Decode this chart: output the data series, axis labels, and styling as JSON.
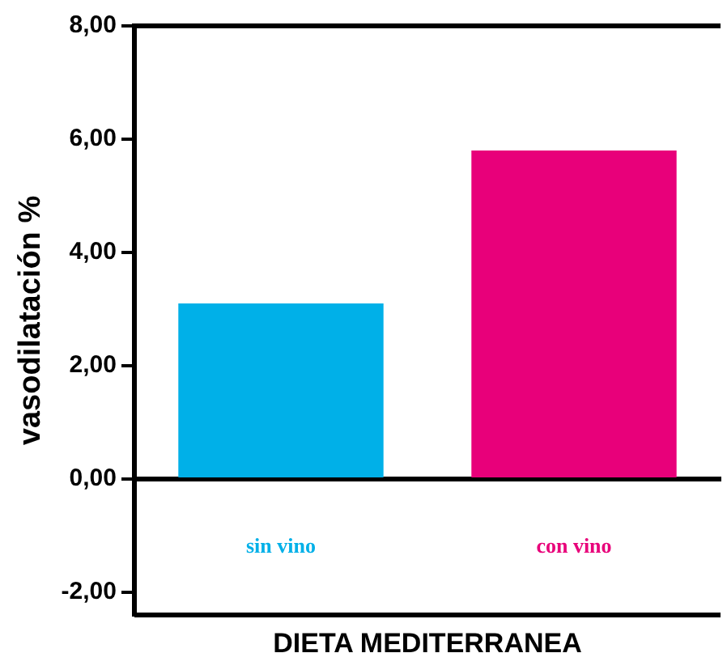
{
  "chart_data": {
    "type": "bar",
    "ylabel": "vasodilatación %",
    "xlabel": "DIETA MEDITERRANEA",
    "categories": [
      "sin vino",
      "con vino"
    ],
    "values": [
      3.1,
      5.8
    ],
    "colors": [
      "#00b0e8",
      "#e8007a"
    ],
    "ylim": [
      -2.4,
      8
    ],
    "yticks": [
      {
        "value": -2,
        "label": "-2,00"
      },
      {
        "value": 0,
        "label": "0,00"
      },
      {
        "value": 2,
        "label": "2,00"
      },
      {
        "value": 4,
        "label": "4,00"
      },
      {
        "value": 6,
        "label": "6,00"
      },
      {
        "value": 8,
        "label": "8,00"
      }
    ],
    "grid": false,
    "legend": false
  }
}
